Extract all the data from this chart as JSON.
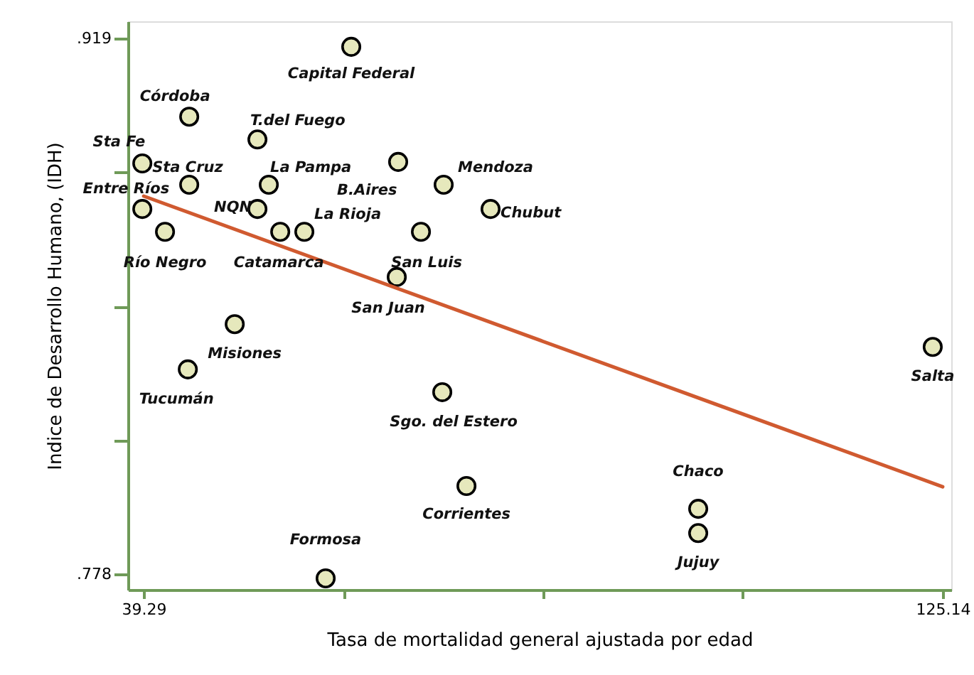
{
  "chart_data": {
    "type": "scatter",
    "xlabel": "Tasa de mortalidad general ajustada por edad",
    "ylabel": "Indice de Desarrollo Humano, (IDH)",
    "xlim": [
      37.6,
      126.06
    ],
    "ylim": [
      0.7739,
      0.9235
    ],
    "xticks": [
      39.29,
      {
        "value": 60.7525,
        "label": null
      },
      {
        "value": 82.215,
        "label": null
      },
      {
        "value": 103.6775,
        "label": null
      },
      125.14
    ],
    "yticks": [
      {
        "value": 0.778,
        "label": ".778"
      },
      {
        "value": 0.81325,
        "label": null
      },
      {
        "value": 0.8485,
        "label": null
      },
      {
        "value": 0.88375,
        "label": null
      },
      {
        "value": 0.919,
        "label": ".919"
      }
    ],
    "grid": false,
    "series": [
      {
        "marker": "circle",
        "color": "#e6e8bc",
        "x": [
          61.59,
          44.18,
          51.51,
          39.14,
          44.18,
          52.73,
          66.63,
          71.52,
          76.56,
          39.14,
          51.51,
          41.58,
          53.96,
          56.55,
          69.08,
          66.48,
          49.07,
          44.03,
          71.37,
          73.97,
          58.84,
          98.87,
          98.87,
          124.07
        ],
        "values": [
          0.9168,
          0.8984,
          0.8924,
          0.8861,
          0.8805,
          0.8805,
          0.8865,
          0.8805,
          0.8741,
          0.8741,
          0.8741,
          0.8681,
          0.8681,
          0.8681,
          0.8681,
          0.8562,
          0.8438,
          0.8319,
          0.8259,
          0.8012,
          0.7769,
          0.7952,
          0.7888,
          0.8378
        ]
      },
      {
        "type": "line",
        "color": "#d05a30",
        "line_style": "solid",
        "x": [
          39.29,
          125.14
        ],
        "values": [
          0.8775,
          0.801
        ]
      }
    ],
    "annotations": [
      {
        "text": "Capital Federal",
        "x": 61.59,
        "y": 0.9168
      },
      {
        "text": "Córdoba",
        "x": 44.18,
        "y": 0.8984
      },
      {
        "text": "T.del Fuego",
        "x": 51.51,
        "y": 0.8924
      },
      {
        "text": "Sta Fe",
        "x": 39.14,
        "y": 0.8861
      },
      {
        "text": "Sta Cruz",
        "x": 44.18,
        "y": 0.8805
      },
      {
        "text": "La Pampa",
        "x": 52.73,
        "y": 0.8805
      },
      {
        "text": "B.Aires",
        "x": 66.63,
        "y": 0.8865
      },
      {
        "text": "Mendoza",
        "x": 71.52,
        "y": 0.8805
      },
      {
        "text": "Chubut",
        "x": 76.56,
        "y": 0.8741
      },
      {
        "text": "Entre Ríos",
        "x": 39.14,
        "y": 0.8741
      },
      {
        "text": "NQN",
        "x": 51.51,
        "y": 0.8741
      },
      {
        "text": "Río Negro",
        "x": 41.58,
        "y": 0.8681
      },
      {
        "text": "Catamarca",
        "x": 53.96,
        "y": 0.8681
      },
      {
        "text": "La Rioja",
        "x": 56.55,
        "y": 0.8681
      },
      {
        "text": "San Luis",
        "x": 69.08,
        "y": 0.8681
      },
      {
        "text": "San Juan",
        "x": 66.48,
        "y": 0.8562
      },
      {
        "text": "Misiones",
        "x": 49.07,
        "y": 0.8438
      },
      {
        "text": "Tucumán",
        "x": 44.03,
        "y": 0.8319
      },
      {
        "text": "Sgo. del Estero",
        "x": 71.37,
        "y": 0.8259
      },
      {
        "text": "Corrientes",
        "x": 73.97,
        "y": 0.8012
      },
      {
        "text": "Formosa",
        "x": 58.84,
        "y": 0.7769
      },
      {
        "text": "Chaco",
        "x": 98.87,
        "y": 0.7952
      },
      {
        "text": "Jujuy",
        "x": 98.87,
        "y": 0.7888
      },
      {
        "text": "Salta",
        "x": 124.07,
        "y": 0.8378
      }
    ]
  }
}
